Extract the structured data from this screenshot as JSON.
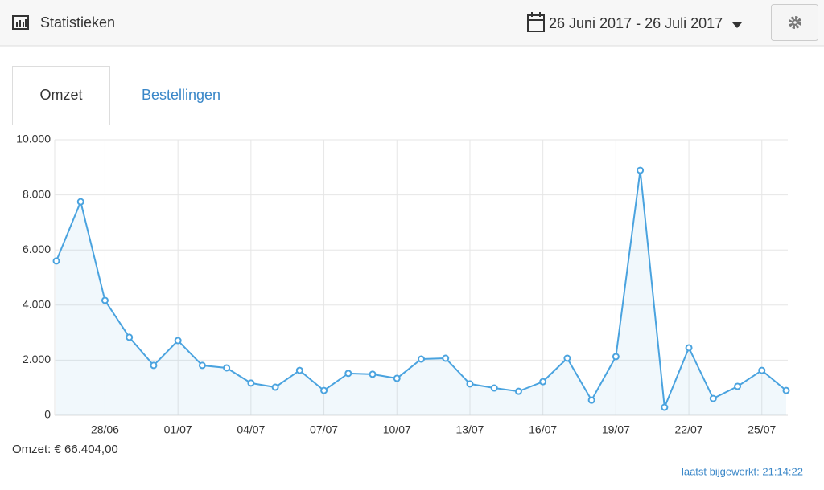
{
  "header": {
    "title": "Statistieken",
    "date_range": "26 Juni 2017 - 26 Juli 2017"
  },
  "tabs": [
    "Omzet",
    "Bestellingen"
  ],
  "chart_data": {
    "type": "line",
    "categories": [
      null,
      null,
      "28/06",
      null,
      null,
      "01/07",
      null,
      null,
      "04/07",
      null,
      null,
      "07/07",
      null,
      null,
      "10/07",
      null,
      null,
      "13/07",
      null,
      null,
      "16/07",
      null,
      null,
      "19/07",
      null,
      null,
      "22/07",
      null,
      null,
      "25/07",
      null
    ],
    "series": [
      {
        "color": "#4aa3df",
        "values": [
          5600,
          7750,
          4170,
          2830,
          1810,
          2710,
          1810,
          1720,
          1170,
          1020,
          1630,
          900,
          1520,
          1490,
          1340,
          2040,
          2070,
          1140,
          990,
          870,
          1220,
          2070,
          550,
          2130,
          8890,
          290,
          2450,
          610,
          1050,
          1630,
          900
        ]
      }
    ],
    "ylim": [
      0,
      10000
    ],
    "yticks": [
      0,
      {
        "value": 2000,
        "label": "2.000"
      },
      {
        "value": 4000,
        "label": "4.000"
      },
      {
        "value": 6000,
        "label": "6.000"
      },
      {
        "value": 8000,
        "label": "8.000"
      },
      {
        "value": 10000,
        "label": "10.000"
      }
    ],
    "grid": true,
    "area": true
  },
  "footer": {
    "total": "Omzet: € 66.404,00",
    "updated": "laatst bijgewerkt: 21:14:22"
  }
}
